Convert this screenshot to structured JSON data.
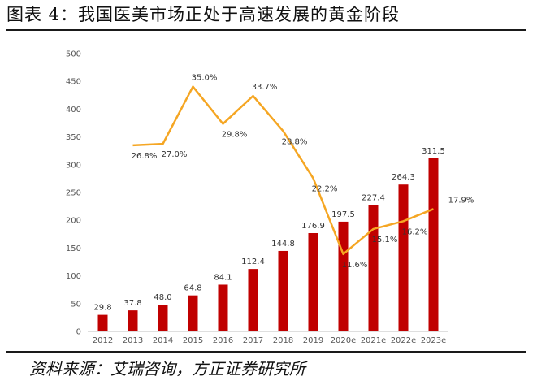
{
  "title": "图表 4：我国医美市场正处于高速发展的黄金阶段",
  "source": "资料来源：艾瑞咨询，方正证券研究所",
  "colors": {
    "bar": "#C00000",
    "line": "#F5A623",
    "axis": "#BFBFBF"
  },
  "chart_data": {
    "type": "bar",
    "categories": [
      "2012",
      "2013",
      "2014",
      "2015",
      "2016",
      "2017",
      "2018",
      "2019",
      "2020e",
      "2021e",
      "2022e",
      "2023e"
    ],
    "yticks": [
      0,
      50,
      100,
      150,
      200,
      250,
      300,
      350,
      400,
      450,
      500
    ],
    "ylim": [
      0,
      500
    ],
    "grid": false,
    "series": [
      {
        "type": "bar",
        "values": [
          29.8,
          37.8,
          48.0,
          64.8,
          84.1,
          112.4,
          144.8,
          176.9,
          197.5,
          227.4,
          264.3,
          311.5
        ],
        "labels": [
          "29.8",
          "37.8",
          "48.0",
          "64.8",
          "84.1",
          "112.4",
          "144.8",
          "176.9",
          "197.5",
          "227.4",
          "264.3",
          "311.5"
        ]
      },
      {
        "type": "line",
        "values": [
          null,
          26.8,
          27.0,
          35.0,
          29.8,
          33.7,
          28.8,
          22.2,
          11.6,
          15.1,
          16.2,
          17.9
        ],
        "labels": [
          "",
          "26.8%",
          "27.0%",
          "35.0%",
          "29.8%",
          "33.7%",
          "28.8%",
          "22.2%",
          "11.6%",
          "15.1%",
          "16.2%",
          "17.9%"
        ]
      }
    ]
  }
}
